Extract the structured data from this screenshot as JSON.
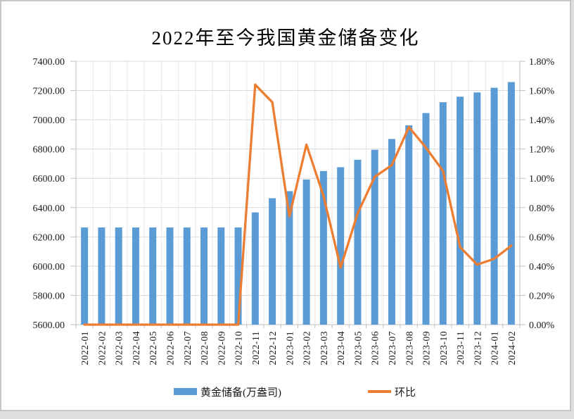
{
  "frame": {
    "background": "#FFFFFF",
    "border_color": "#C6C6C6",
    "outside_strip_color": "#DEDEDE"
  },
  "chart_data": {
    "type": "combo-bar-line",
    "title": "2022年至今我国黄金储备变化",
    "categories": [
      "2022-01",
      "2022-02",
      "2022-03",
      "2022-04",
      "2022-05",
      "2022-06",
      "2022-07",
      "2022-08",
      "2022-09",
      "2022-10",
      "2022-11",
      "2022-12",
      "2023-01",
      "2023-02",
      "2023-03",
      "2023-04",
      "2023-05",
      "2023-06",
      "2023-07",
      "2023-08",
      "2023-09",
      "2023-10",
      "2023-11",
      "2023-12",
      "2024-01",
      "2024-02"
    ],
    "series": [
      {
        "name": "黄金储备(万盎司)",
        "type": "bar",
        "axis": "left",
        "color": "#5B9BD5",
        "values": [
          6264,
          6264,
          6264,
          6264,
          6264,
          6264,
          6264,
          6264,
          6264,
          6264,
          6367,
          6464,
          6512,
          6592,
          6650,
          6676,
          6727,
          6795,
          6869,
          6962,
          7046,
          7120,
          7158,
          7187,
          7219,
          7258
        ]
      },
      {
        "name": "环比",
        "type": "line",
        "axis": "right",
        "color": "#ED7D31",
        "values": [
          0.0,
          0.0,
          0.0,
          0.0,
          0.0,
          0.0,
          0.0,
          0.0,
          0.0,
          0.0,
          1.64,
          1.52,
          0.74,
          1.23,
          0.88,
          0.39,
          0.76,
          1.01,
          1.09,
          1.35,
          1.21,
          1.05,
          0.53,
          0.41,
          0.45,
          0.54
        ]
      }
    ],
    "left_axis": {
      "min": 5600,
      "max": 7400,
      "step": 200,
      "tick_labels_top_to_bottom": [
        "7400.00",
        "7200.00",
        "7000.00",
        "6800.00",
        "6600.00",
        "6400.00",
        "6200.00",
        "6000.00",
        "5800.00",
        "5600.00"
      ]
    },
    "right_axis": {
      "min": 0.0,
      "max": 1.8,
      "step": 0.2,
      "tick_labels_top_to_bottom": [
        "1.80%",
        "1.60%",
        "1.40%",
        "1.20%",
        "1.00%",
        "0.80%",
        "0.60%",
        "0.40%",
        "0.20%",
        "0.00%"
      ]
    },
    "grid": {
      "horizontal": true,
      "vertical": true,
      "h_color": "#D9D9D9",
      "v_color": "#E9E9E9",
      "axis_color": "#BFBFBF"
    },
    "legend": {
      "position": "bottom",
      "items": [
        "黄金储备(万盎司)",
        "环比"
      ]
    }
  }
}
